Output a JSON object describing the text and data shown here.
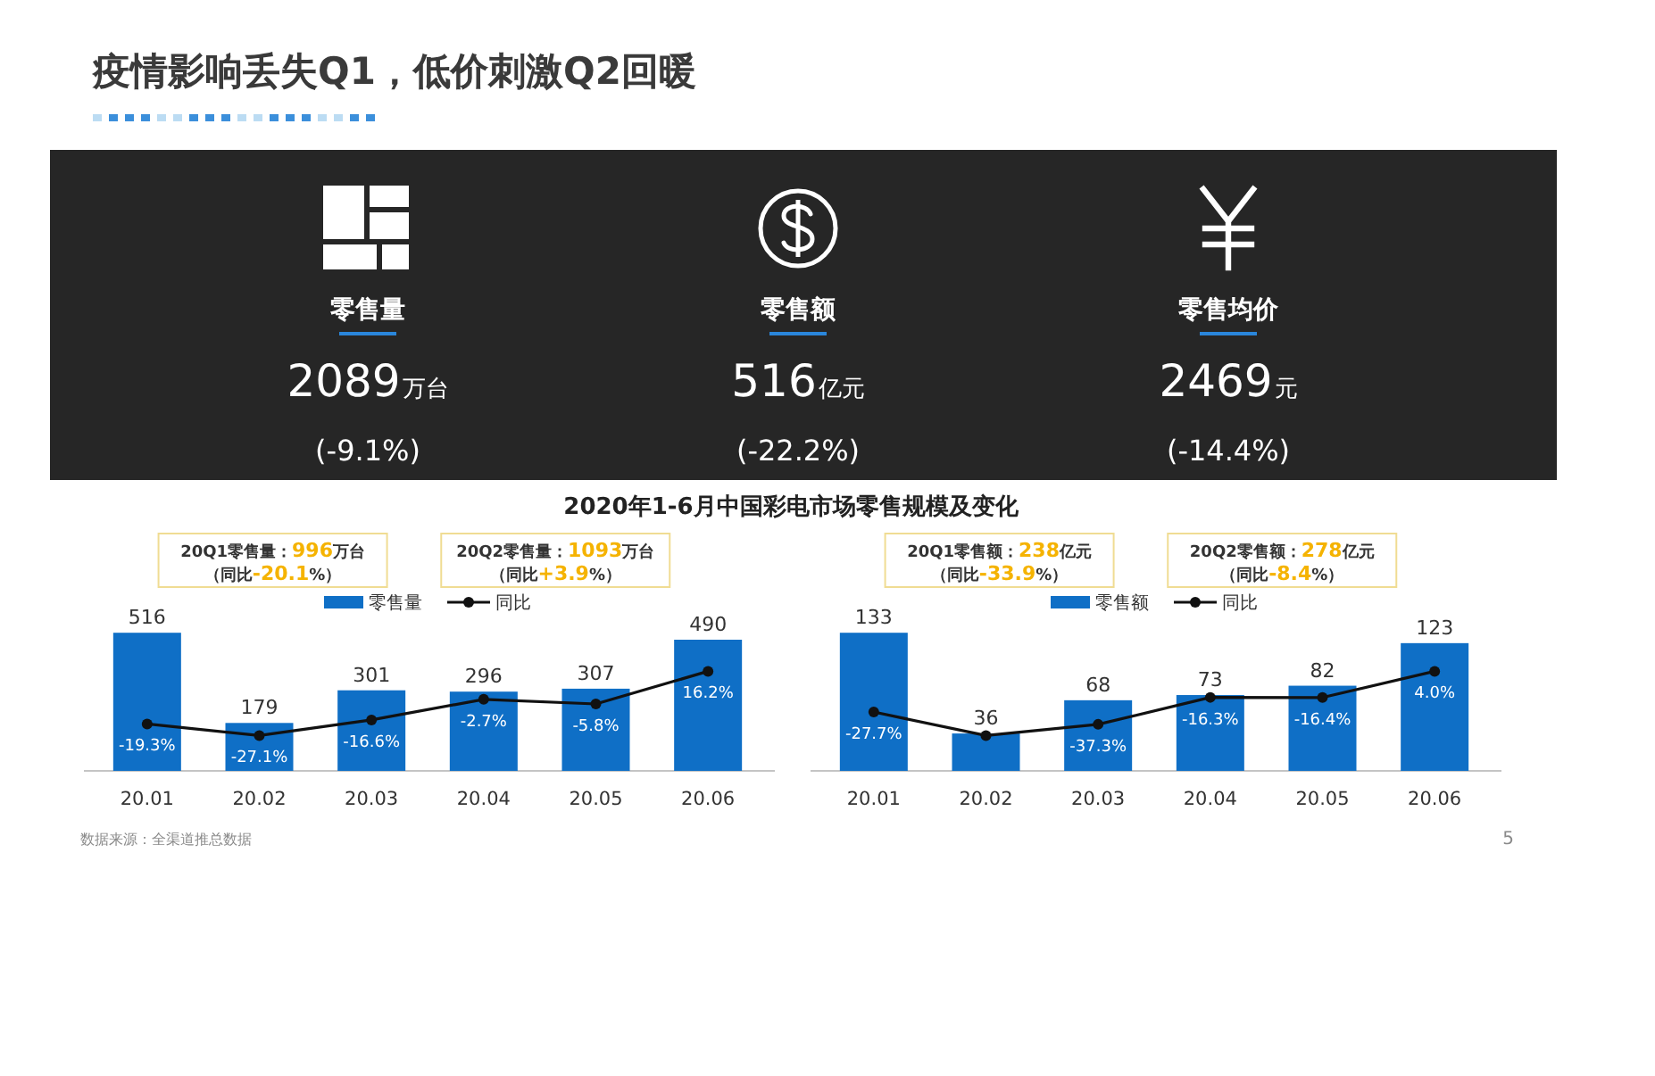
{
  "chart_data": [
    {
      "type": "other",
      "title": "疫情影响丢失Q1，低价刺激Q2回暖",
      "annotations": [
        "零售量",
        "2089",
        "万台",
        "(-9.1%)",
        "零售额",
        "516",
        "亿元",
        "(-22.2%)",
        "零售均价",
        "2469",
        "元",
        "(-14.4%)"
      ]
    },
    {
      "type": "bar",
      "title": "2020年1-6月中国彩电市场零售规模及变化",
      "categories": [
        "20.01",
        "20.02",
        "20.03",
        "20.04",
        "20.05",
        "20.06"
      ],
      "series": [
        {
          "name": "零售量",
          "type": "bar",
          "color": "#0f6fc6",
          "values": [
            516,
            179,
            301,
            296,
            307,
            490
          ]
        },
        {
          "name": "同比",
          "type": "line",
          "axis": "y2",
          "color": "#111111",
          "values": [
            -19.3,
            -27.1,
            -16.6,
            -2.7,
            -5.8,
            16.2
          ],
          "value_labels": [
            "-19.3%",
            "-27.1%",
            "-16.6%",
            "-2.7%",
            "-5.8%",
            "16.2%"
          ]
        }
      ],
      "data_labels": true,
      "legend": "top",
      "marker": "circle",
      "annotations": [
        "20Q1零售量：**996**万台",
        "（同比**-20.1**%）",
        "20Q2零售量：**1093**万台",
        "（同比**+3.9**%）",
        "数据来源：全渠道推总数据"
      ]
    },
    {
      "type": "bar",
      "categories": [
        "20.01",
        "20.02",
        "20.03",
        "20.04",
        "20.05",
        "20.06"
      ],
      "series": [
        {
          "name": "零售额",
          "type": "bar",
          "color": "#0f6fc6",
          "values": [
            133,
            36,
            68,
            73,
            82,
            123
          ]
        },
        {
          "name": "同比",
          "type": "line",
          "axis": "y2",
          "color": "#111111",
          "values": [
            -27.7,
            -46,
            -37.3,
            -16.3,
            -16.4,
            4.0
          ],
          "value_labels": [
            "-27.7%",
            null,
            "-37.3%",
            "-16.3%",
            "-16.4%",
            "4.0%"
          ]
        }
      ],
      "data_labels": true,
      "legend": "top",
      "marker": "circle",
      "annotations": [
        "20Q1零售额：**238**亿元",
        "（同比**-33.9**%）",
        "20Q2零售额：**278**亿元",
        "（同比**-8.4**%）",
        "5"
      ]
    }
  ]
}
